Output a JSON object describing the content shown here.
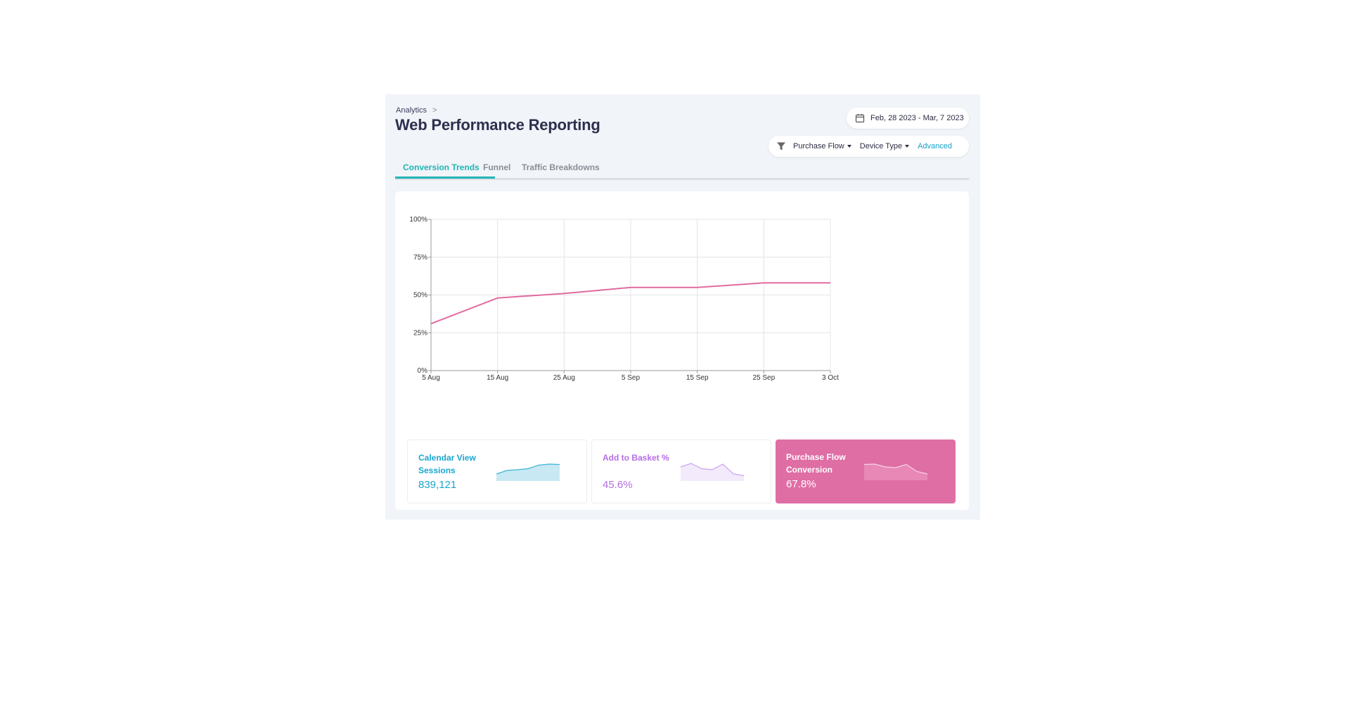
{
  "breadcrumb": {
    "parent": "Analytics",
    "separator": ">"
  },
  "page_title": "Web Performance Reporting",
  "date_range": {
    "icon": "calendar-icon",
    "label": "Feb, 28 2023 - Mar, 7 2023"
  },
  "filters": {
    "icon": "funnel-icon",
    "purchase_flow": "Purchase Flow",
    "device_type": "Device Type",
    "advanced": "Advanced"
  },
  "tabs": [
    {
      "label": "Conversion Trends",
      "active": true
    },
    {
      "label": "Funnel",
      "active": false
    },
    {
      "label": "Traffic Breakdowns",
      "active": false
    }
  ],
  "colors": {
    "accent": "#22b5b5",
    "line": "#e06b9f",
    "cyan": "#19a6cf",
    "purple": "#b46ee3",
    "pink": "#df6ea5"
  },
  "chart_data": {
    "type": "line",
    "x": [
      "5 Aug",
      "15 Aug",
      "25 Aug",
      "5 Sep",
      "15 Sep",
      "25 Sep",
      "3 Oct"
    ],
    "series": [
      {
        "values": [
          31,
          48,
          51,
          55,
          55,
          58,
          58
        ]
      }
    ],
    "y_ticks": [
      "0%",
      "25%",
      "50%",
      "75%",
      "100%"
    ],
    "ylim": [
      0,
      100
    ],
    "grid": true
  },
  "kpis": [
    {
      "label": "Calendar View Sessions",
      "value": "839,121",
      "spark": [
        2,
        3,
        3.2,
        3.5,
        4.5,
        4.8,
        4.7
      ]
    },
    {
      "label": "Add to Basket %",
      "value": "45.6%",
      "spark": [
        4,
        5,
        3.5,
        3.2,
        4.8,
        2,
        1.5
      ]
    },
    {
      "label": "Purchase Flow Conversion",
      "value": "67.8%",
      "spark": [
        4.5,
        4.6,
        3.8,
        3.6,
        4.5,
        2.5,
        1.8
      ]
    }
  ]
}
